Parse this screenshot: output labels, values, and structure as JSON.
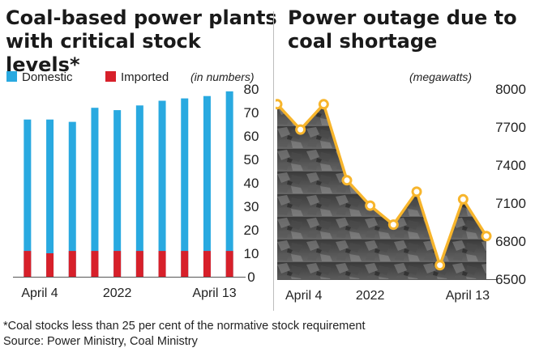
{
  "left_chart": {
    "title_line1": "Coal-based power plants",
    "title_line2": "with critical stock levels*",
    "legend": {
      "domestic": "Domestic",
      "imported": "Imported",
      "domestic_color": "#29a9e0",
      "imported_color": "#d7202a"
    },
    "unit_note": "(in numbers)"
  },
  "right_chart": {
    "title_line1": "Power outage due to",
    "title_line2": "coal shortage",
    "unit_note": "(megawatts)",
    "line_color": "#f7b52c"
  },
  "footnote": "*Coal stocks less than 25 per cent of the normative stock requirement",
  "source": "Source: Power Ministry, Coal Ministry",
  "chart_data": [
    {
      "type": "bar",
      "title": "Coal-based power plants with critical stock levels*",
      "categories": [
        "April 4",
        "",
        "",
        "",
        "2022",
        "",
        "",
        "",
        "",
        "April 13"
      ],
      "x_tick_labels": [
        "April 4",
        "2022",
        "April 13"
      ],
      "series": [
        {
          "name": "Domestic",
          "values": [
            67,
            67,
            66,
            72,
            71,
            73,
            75,
            76,
            77,
            79
          ]
        },
        {
          "name": "Imported",
          "values": [
            11,
            10,
            11,
            11,
            11,
            11,
            11,
            11,
            11,
            11
          ]
        }
      ],
      "ylim": [
        0,
        80
      ],
      "yticks": [
        0,
        10,
        20,
        30,
        40,
        50,
        60,
        70,
        80
      ],
      "grid": false,
      "legend_position": "top-left"
    },
    {
      "type": "line",
      "title": "Power outage due to coal shortage",
      "x": [
        "April 4",
        "",
        "",
        "",
        "2022",
        "",
        "",
        "",
        "",
        "April 13"
      ],
      "x_tick_labels": [
        "April 4",
        "2022",
        "April 13"
      ],
      "series": [
        {
          "values": [
            7880,
            7680,
            7880,
            7280,
            7080,
            6930,
            7190,
            6610,
            7130,
            6840
          ]
        }
      ],
      "ylim": [
        6500,
        8000
      ],
      "yticks": [
        6500,
        6800,
        7100,
        7400,
        7700,
        8000
      ],
      "grid": false
    }
  ]
}
